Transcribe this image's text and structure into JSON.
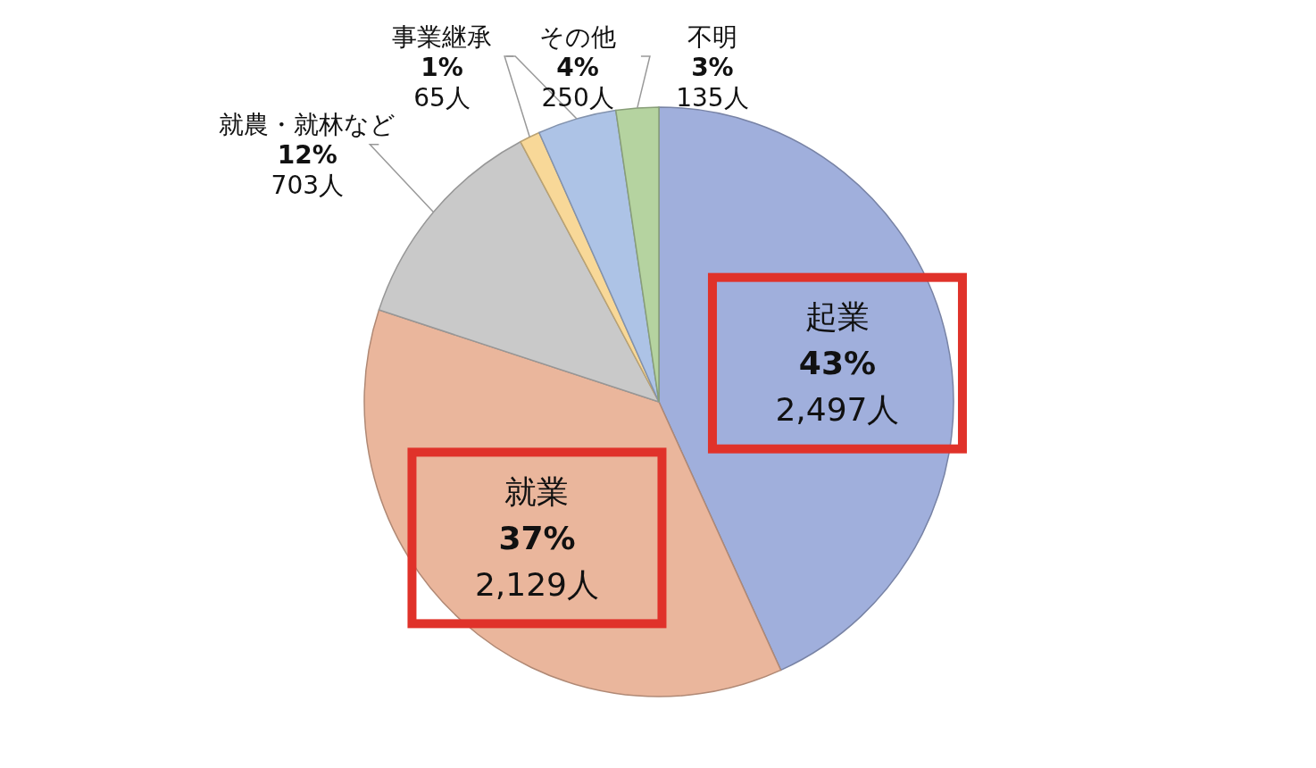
{
  "chart_data": {
    "type": "pie",
    "categories": [
      "起業",
      "就業",
      "就農・就林など",
      "事業継承",
      "その他",
      "不明"
    ],
    "values": [
      2497,
      2129,
      703,
      65,
      250,
      135
    ],
    "colors": [
      "#a0afdc",
      "#eab69c",
      "#c9c9c9",
      "#f8d898",
      "#adc3e6",
      "#b5d3a0"
    ],
    "value_labels": [
      "43%\n2,497人",
      "37%\n2,129人",
      "12%\n703人",
      "1%\n65人",
      "4%\n250人",
      "3%\n135人"
    ]
  }
}
